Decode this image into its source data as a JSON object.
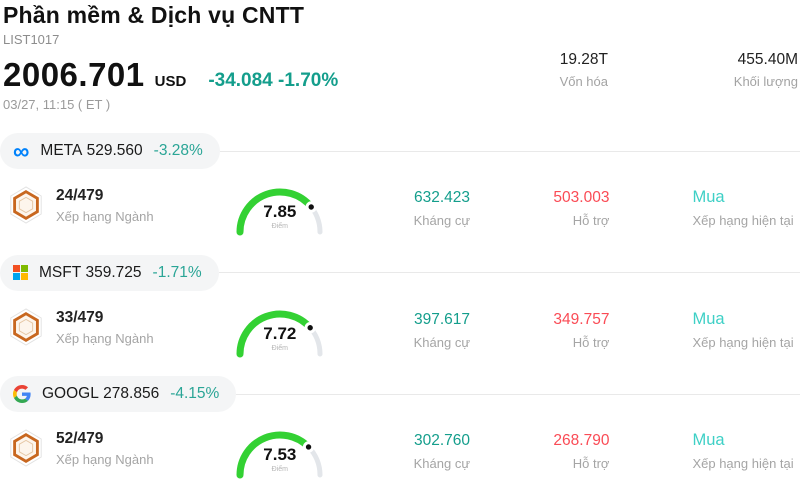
{
  "header": {
    "title": "Phần mềm & Dịch vụ CNTT",
    "list_id": "LIST1017",
    "price": "2006.701",
    "currency": "USD",
    "change": "-34.084 -1.70%",
    "timestamp": "03/27, 11:15 ( ET )",
    "market_cap": {
      "value": "19.28T",
      "label": "Vốn hóa"
    },
    "volume": {
      "value": "455.40M",
      "label": "Khối lượng"
    }
  },
  "rows": [
    {
      "ticker": "META",
      "price": "529.560",
      "change": "-3.28%",
      "logo_icon": "meta-logo",
      "rank": "24/479",
      "rank_label": "Xếp hạng Ngành",
      "score": 7.85,
      "score_display": "7.85",
      "score_label": "Điểm",
      "resistance": "632.423",
      "resistance_label": "Kháng cự",
      "support": "503.003",
      "support_label": "Hỗ trợ",
      "rating": "Mua",
      "rating_label": "Xếp hạng hiện tại"
    },
    {
      "ticker": "MSFT",
      "price": "359.725",
      "change": "-1.71%",
      "logo_icon": "microsoft-logo",
      "rank": "33/479",
      "rank_label": "Xếp hạng Ngành",
      "score": 7.72,
      "score_display": "7.72",
      "score_label": "Điểm",
      "resistance": "397.617",
      "resistance_label": "Kháng cự",
      "support": "349.757",
      "support_label": "Hỗ trợ",
      "rating": "Mua",
      "rating_label": "Xếp hạng hiện tại"
    },
    {
      "ticker": "GOOGL",
      "price": "278.856",
      "change": "-4.15%",
      "logo_icon": "google-logo",
      "rank": "52/479",
      "rank_label": "Xếp hạng Ngành",
      "score": 7.53,
      "score_display": "7.53",
      "score_label": "Điểm",
      "resistance": "302.760",
      "resistance_label": "Kháng cự",
      "support": "268.790",
      "support_label": "Hỗ trợ",
      "rating": "Mua",
      "rating_label": "Xếp hạng hiện tại"
    }
  ],
  "colors": {
    "up_teal": "#149e8c",
    "down_red": "#fa4b55",
    "rating_cyan": "#3ed0c6",
    "gauge_green": "#33d133",
    "gauge_track": "#e3e6ea",
    "meta_blue": "#0082fb"
  }
}
